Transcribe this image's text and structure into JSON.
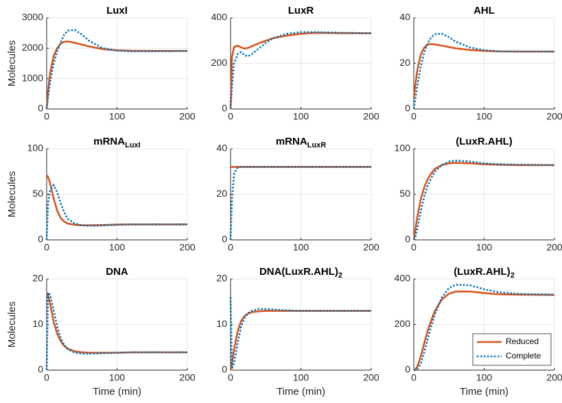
{
  "chart_data": [
    {
      "type": "line",
      "title": "LuxI",
      "ylabel": "Molecules",
      "x": [
        0,
        2,
        5,
        10,
        15,
        20,
        25,
        30,
        40,
        50,
        60,
        80,
        100,
        120,
        150,
        200
      ],
      "series": [
        {
          "color": "#d95319",
          "style": "solid",
          "values": [
            0,
            600,
            1200,
            1750,
            2000,
            2150,
            2210,
            2220,
            2180,
            2120,
            2060,
            1970,
            1930,
            1915,
            1910,
            1910
          ]
        },
        {
          "color": "#0072bd",
          "style": "dotted",
          "values": [
            0,
            400,
            900,
            1500,
            1900,
            2200,
            2450,
            2580,
            2600,
            2450,
            2250,
            2000,
            1920,
            1900,
            1900,
            1910
          ]
        }
      ],
      "xlim": [
        0,
        200
      ],
      "xticks": [
        0,
        100,
        200
      ],
      "ylim": [
        0,
        3000
      ],
      "yticks": [
        0,
        1000,
        2000,
        3000
      ],
      "grid": true
    },
    {
      "type": "line",
      "title": "LuxR",
      "x": [
        0,
        2,
        5,
        10,
        15,
        20,
        25,
        30,
        40,
        50,
        60,
        80,
        100,
        120,
        150,
        200
      ],
      "series": [
        {
          "color": "#d95319",
          "style": "solid",
          "values": [
            0,
            230,
            272,
            278,
            270,
            265,
            268,
            275,
            288,
            300,
            310,
            322,
            330,
            334,
            333,
            332
          ]
        },
        {
          "color": "#0072bd",
          "style": "dotted",
          "values": [
            0,
            100,
            200,
            240,
            250,
            235,
            232,
            240,
            265,
            290,
            310,
            330,
            337,
            337,
            335,
            332
          ]
        }
      ],
      "xlim": [
        0,
        200
      ],
      "xticks": [
        0,
        100,
        200
      ],
      "ylim": [
        0,
        400
      ],
      "yticks": [
        0,
        200,
        400
      ],
      "grid": true
    },
    {
      "type": "line",
      "title": "AHL",
      "x": [
        0,
        2,
        5,
        10,
        15,
        20,
        25,
        30,
        40,
        50,
        60,
        80,
        100,
        120,
        150,
        200
      ],
      "series": [
        {
          "color": "#d95319",
          "style": "solid",
          "values": [
            5,
            10,
            17,
            24,
            27,
            28.3,
            28.5,
            28.3,
            27.8,
            27.2,
            26.6,
            25.9,
            25.5,
            25.3,
            25.2,
            25.2
          ]
        },
        {
          "color": "#0072bd",
          "style": "dotted",
          "values": [
            0,
            4,
            10,
            19,
            25,
            29,
            31.5,
            32.8,
            33,
            31.5,
            29.5,
            27,
            25.8,
            25.3,
            25.2,
            25.2
          ]
        }
      ],
      "xlim": [
        0,
        200
      ],
      "xticks": [
        0,
        100,
        200
      ],
      "ylim": [
        0,
        40
      ],
      "yticks": [
        0,
        20,
        40
      ],
      "grid": true
    },
    {
      "type": "line",
      "title": "mRNA",
      "title_sub": "LuxI",
      "ylabel": "Molecules",
      "x": [
        0,
        2,
        5,
        10,
        15,
        20,
        25,
        30,
        40,
        50,
        60,
        80,
        100,
        120,
        150,
        200
      ],
      "series": [
        {
          "color": "#d95319",
          "style": "solid",
          "values": [
            71,
            69,
            62,
            45,
            32,
            24,
            20,
            18,
            16.5,
            16,
            16,
            16.3,
            16.8,
            17,
            17,
            17
          ]
        },
        {
          "color": "#0072bd",
          "style": "dotted",
          "values": [
            0,
            40,
            55,
            60,
            52,
            40,
            30,
            23,
            18,
            16,
            15.5,
            15.8,
            16.5,
            17,
            17,
            17
          ]
        }
      ],
      "xlim": [
        0,
        200
      ],
      "xticks": [
        0,
        100,
        200
      ],
      "ylim": [
        0,
        100
      ],
      "yticks": [
        0,
        50,
        100
      ],
      "grid": true
    },
    {
      "type": "line",
      "title": "mRNA",
      "title_sub": "LuxR",
      "x": [
        0,
        2,
        5,
        10,
        15,
        20,
        25,
        30,
        40,
        50,
        60,
        80,
        100,
        120,
        150,
        200
      ],
      "series": [
        {
          "color": "#d95319",
          "style": "solid",
          "values": [
            32,
            32,
            32,
            32,
            32,
            32,
            32,
            32,
            32,
            32,
            32,
            32,
            32,
            32,
            32,
            32
          ]
        },
        {
          "color": "#0072bd",
          "style": "dotted",
          "values": [
            0,
            18,
            29,
            31.8,
            32,
            32,
            32,
            32,
            32,
            32,
            32,
            32,
            32,
            32,
            32,
            32
          ]
        }
      ],
      "xlim": [
        0,
        200
      ],
      "xticks": [
        0,
        100,
        200
      ],
      "ylim": [
        0,
        40
      ],
      "yticks": [
        0,
        20,
        40
      ],
      "grid": true
    },
    {
      "type": "line",
      "title": "(LuxR.AHL)",
      "x": [
        0,
        2,
        5,
        10,
        15,
        20,
        25,
        30,
        40,
        50,
        60,
        80,
        100,
        120,
        150,
        200
      ],
      "series": [
        {
          "color": "#d95319",
          "style": "solid",
          "values": [
            0,
            10,
            25,
            45,
            58,
            67,
            73,
            78,
            82,
            84,
            84.5,
            84,
            83,
            82.5,
            82,
            82
          ]
        },
        {
          "color": "#0072bd",
          "style": "dotted",
          "values": [
            0,
            2,
            12,
            32,
            48,
            60,
            68,
            75,
            82,
            86,
            87,
            86,
            84,
            83,
            82.5,
            82
          ]
        }
      ],
      "xlim": [
        0,
        200
      ],
      "xticks": [
        0,
        100,
        200
      ],
      "ylim": [
        0,
        100
      ],
      "yticks": [
        0,
        50,
        100
      ],
      "grid": true
    },
    {
      "type": "line",
      "title": "DNA",
      "ylabel": "Molecules",
      "xlabel": "Time (min)",
      "x": [
        0,
        2,
        5,
        10,
        15,
        20,
        25,
        30,
        40,
        50,
        60,
        80,
        100,
        120,
        150,
        200
      ],
      "series": [
        {
          "color": "#d95319",
          "style": "solid",
          "values": [
            17,
            16.5,
            14.5,
            10.5,
            8,
            6.3,
            5.3,
            4.7,
            4.1,
            3.9,
            3.8,
            3.8,
            3.8,
            3.9,
            3.9,
            3.9
          ]
        },
        {
          "color": "#0072bd",
          "style": "dotted",
          "values": [
            0,
            17,
            16.5,
            13,
            9.5,
            7,
            5.5,
            4.6,
            3.8,
            3.6,
            3.6,
            3.7,
            3.8,
            3.9,
            3.9,
            3.9
          ]
        }
      ],
      "xlim": [
        0,
        200
      ],
      "xticks": [
        0,
        100,
        200
      ],
      "ylim": [
        0,
        20
      ],
      "yticks": [
        0,
        10,
        20
      ],
      "grid": true
    },
    {
      "type": "line",
      "title": "DNA(LuxR.AHL)",
      "title_sub": "2",
      "xlabel": "Time (min)",
      "x": [
        0,
        2,
        5,
        10,
        15,
        20,
        25,
        30,
        40,
        50,
        60,
        80,
        100,
        120,
        150,
        200
      ],
      "series": [
        {
          "color": "#d95319",
          "style": "solid",
          "values": [
            0,
            1.5,
            4.5,
            8.5,
            10.8,
            11.9,
            12.4,
            12.7,
            12.9,
            13,
            13,
            13,
            13,
            13,
            13,
            13
          ]
        },
        {
          "color": "#0072bd",
          "style": "dotted",
          "values": [
            16,
            0.3,
            1.5,
            6,
            9.5,
            11.5,
            12.5,
            13,
            13.4,
            13.4,
            13.3,
            13.1,
            13,
            13,
            13,
            13
          ]
        }
      ],
      "xlim": [
        0,
        200
      ],
      "xticks": [
        0,
        100,
        200
      ],
      "ylim": [
        0,
        20
      ],
      "yticks": [
        0,
        10,
        20
      ],
      "grid": true
    },
    {
      "type": "line",
      "title": "(LuxR.AHL)",
      "title_sub": "2",
      "xlabel": "Time (min)",
      "x": [
        0,
        2,
        5,
        10,
        15,
        20,
        25,
        30,
        40,
        50,
        60,
        80,
        100,
        120,
        150,
        200
      ],
      "series": [
        {
          "name": "Reduced",
          "color": "#d95319",
          "style": "solid",
          "values": [
            0,
            3,
            15,
            60,
            120,
            175,
            220,
            260,
            310,
            335,
            345,
            345,
            338,
            333,
            331,
            330
          ]
        },
        {
          "name": "Complete",
          "color": "#0072bd",
          "style": "dotted",
          "values": [
            0,
            1,
            5,
            30,
            80,
            140,
            195,
            245,
            320,
            360,
            375,
            372,
            355,
            342,
            334,
            331
          ]
        }
      ],
      "xlim": [
        0,
        200
      ],
      "xticks": [
        0,
        100,
        200
      ],
      "ylim": [
        0,
        400
      ],
      "yticks": [
        0,
        200,
        400
      ],
      "grid": true,
      "legend": "lower right"
    }
  ]
}
